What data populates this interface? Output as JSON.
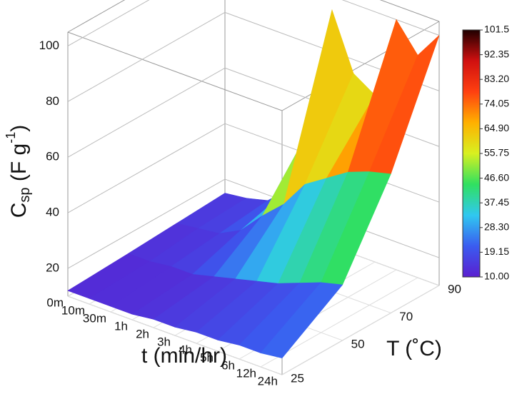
{
  "chart_data": {
    "type": "surface3d",
    "xlabel": "t (min/hr)",
    "ylabel": "T (˚C)",
    "zlabel": {
      "base": "C",
      "sub": "sp",
      "mid": " (F g",
      "sup": "-1",
      "end": ")"
    },
    "categories": [
      "0m",
      "10m",
      "30m",
      "1h",
      "2h",
      "3h",
      "4h",
      "5h",
      "6h",
      "12h",
      "24h"
    ],
    "ylim": [
      25,
      90
    ],
    "yticks": [
      25,
      50,
      70,
      90
    ],
    "zlim": [
      10,
      105
    ],
    "zticks": [
      20,
      40,
      60,
      80,
      100
    ],
    "series": [
      {
        "name": "25",
        "values": [
          12,
          12,
          12,
          12,
          13,
          13,
          14,
          14,
          15,
          15,
          16
        ]
      },
      {
        "name": "50",
        "values": [
          13,
          13,
          14,
          14,
          16,
          18,
          20,
          22,
          25,
          28,
          30
        ]
      },
      {
        "name": "70",
        "values": [
          14,
          15,
          16,
          20,
          28,
          35,
          45,
          50,
          55,
          58,
          60
        ]
      },
      {
        "name": "90",
        "values": [
          15,
          16,
          18,
          25,
          50,
          95,
          75,
          70,
          100,
          90,
          100
        ]
      }
    ],
    "colorbar_lim": [
      10,
      101.5
    ],
    "colorbar_ticks": [
      101.5,
      92.35,
      {
        "value": 83.2,
        "label": "83.20"
      },
      74.05,
      {
        "value": 64.9,
        "label": "64.90"
      },
      55.75,
      {
        "value": 46.6,
        "label": "46.60"
      },
      37.45,
      {
        "value": 28.3,
        "label": "28.30"
      },
      19.15,
      {
        "value": 10,
        "label": "10.00"
      }
    ],
    "colorscale": [
      "#5a1fd0",
      "#3a5cf0",
      "#30c8f0",
      "#30e060",
      "#d8f020",
      "#ffb000",
      "#ff4010",
      "#d01010",
      "#200000"
    ],
    "grid": true
  }
}
